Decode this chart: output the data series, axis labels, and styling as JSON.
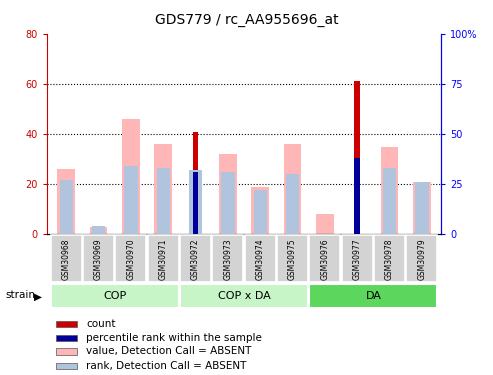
{
  "title": "GDS779 / rc_AA955696_at",
  "samples": [
    "GSM30968",
    "GSM30969",
    "GSM30970",
    "GSM30971",
    "GSM30972",
    "GSM30973",
    "GSM30974",
    "GSM30975",
    "GSM30976",
    "GSM30977",
    "GSM30978",
    "GSM30979"
  ],
  "count_values": [
    0,
    0,
    0,
    0,
    41,
    0,
    0,
    0,
    0,
    61,
    0,
    0
  ],
  "rank_values": [
    0,
    0,
    0,
    0,
    31,
    0,
    0,
    0,
    0,
    38,
    0,
    0
  ],
  "value_absent": [
    26,
    3,
    46,
    36,
    0,
    32,
    19,
    36,
    8,
    0,
    35,
    21
  ],
  "rank_absent": [
    27,
    4,
    34,
    33,
    32,
    31,
    22,
    30,
    0,
    0,
    33,
    26
  ],
  "ylim_left": [
    0,
    80
  ],
  "ylim_right": [
    0,
    100
  ],
  "yticks_left": [
    0,
    20,
    40,
    60,
    80
  ],
  "yticks_right": [
    0,
    25,
    50,
    75,
    100
  ],
  "ytick_labels_left": [
    "0",
    "20",
    "40",
    "60",
    "80"
  ],
  "ytick_labels_right": [
    "0",
    "25",
    "50",
    "75",
    "100%"
  ],
  "color_count": "#cc0000",
  "color_rank": "#000099",
  "color_value_absent": "#ffb6b6",
  "color_rank_absent": "#b0c4de",
  "wide_bar_width": 0.55,
  "narrow_bar_width": 0.18,
  "groups_info": [
    {
      "name": "COP",
      "start": 0,
      "end": 3,
      "color": "#c8f5c8"
    },
    {
      "name": "COP x DA",
      "start": 4,
      "end": 7,
      "color": "#c8f5c8"
    },
    {
      "name": "DA",
      "start": 8,
      "end": 11,
      "color": "#5cd65c"
    }
  ],
  "legend_items": [
    {
      "color": "#cc0000",
      "label": "count"
    },
    {
      "color": "#000099",
      "label": "percentile rank within the sample"
    },
    {
      "color": "#ffb6b6",
      "label": "value, Detection Call = ABSENT"
    },
    {
      "color": "#b0c4de",
      "label": "rank, Detection Call = ABSENT"
    }
  ]
}
